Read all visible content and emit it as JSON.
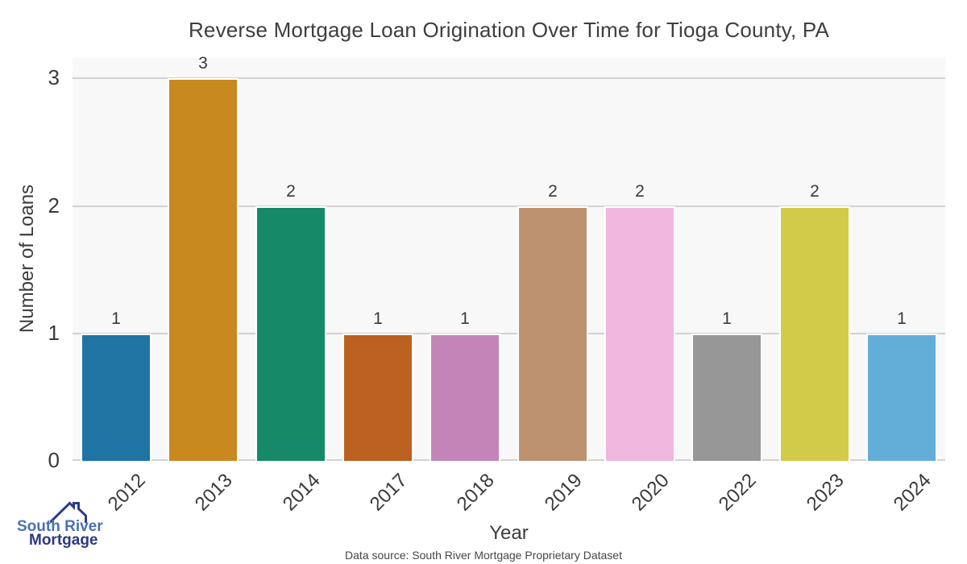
{
  "chart_data": {
    "type": "bar",
    "title": "Reverse Mortgage Loan Origination Over Time for Tioga County, PA",
    "xlabel": "Year",
    "ylabel": "Number of Loans",
    "categories": [
      "2012",
      "2013",
      "2014",
      "2017",
      "2018",
      "2019",
      "2020",
      "2022",
      "2023",
      "2024"
    ],
    "values": [
      1,
      3,
      2,
      1,
      1,
      2,
      2,
      1,
      2,
      1
    ],
    "bar_colors": [
      "#1f74a4",
      "#c8891f",
      "#168a68",
      "#bc611f",
      "#c385b8",
      "#bc9270",
      "#f0b6de",
      "#979797",
      "#d2cb49",
      "#63aed8"
    ],
    "value_labels": [
      "1",
      "3",
      "2",
      "1",
      "1",
      "2",
      "2",
      "1",
      "2",
      "1"
    ],
    "yticks": [
      0,
      1,
      2,
      3
    ],
    "ylim": [
      0,
      3.16
    ],
    "grid": "horizontal",
    "legend_position": "none",
    "plot_background": "#f8f8f8",
    "gridline_color": "#d2d2d2",
    "bar_edge_color": "#ffffff"
  },
  "footer": {
    "source": "Data source: South River Mortgage Proprietary Dataset"
  },
  "logo": {
    "line1": "South River",
    "line2": "Mortgage",
    "line1_color": "#4a70b7",
    "line2_color": "#2d3a7e",
    "icon": "house-roof-icon",
    "icon_color": "#2e3a8c"
  }
}
